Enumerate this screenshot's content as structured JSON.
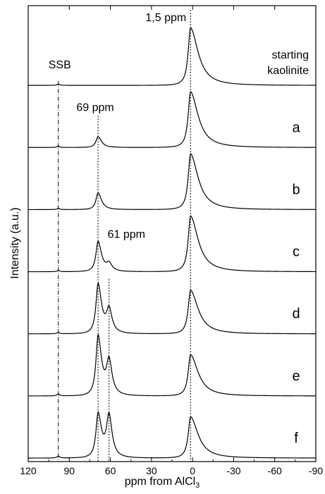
{
  "chart_data": {
    "type": "line",
    "xlabel": "ppm from  AlCl",
    "xlabel_subscript": "3",
    "ylabel": "Intensity (a.u.)",
    "xlim": [
      120,
      -90
    ],
    "x_reversed": true,
    "x_ticks": [
      120,
      90,
      60,
      30,
      0,
      -30,
      -60,
      -90
    ],
    "x_tick_labels": [
      "120",
      "90",
      "60",
      "30",
      "0",
      "-30",
      "-60",
      "-90"
    ],
    "grid": false,
    "reference_lines": [
      {
        "x": 98,
        "style": "dash-dot",
        "label": "SSB"
      },
      {
        "x": 69,
        "style": "dotted",
        "label": "69 ppm"
      },
      {
        "x": 61,
        "style": "dotted",
        "label": "61 ppm"
      },
      {
        "x": 1.5,
        "style": "dotted",
        "label": "1,5 ppm"
      }
    ],
    "series": [
      {
        "name": "starting kaolinite",
        "peaks": [
          {
            "ppm": 1.5,
            "height": 0.95
          }
        ],
        "ssb": 0.02
      },
      {
        "name": "a",
        "peaks": [
          {
            "ppm": 69,
            "height": 0.18
          },
          {
            "ppm": 1.5,
            "height": 0.92
          }
        ],
        "ssb": 0.02
      },
      {
        "name": "b",
        "peaks": [
          {
            "ppm": 69,
            "height": 0.28
          },
          {
            "ppm": 1.5,
            "height": 0.92
          }
        ],
        "ssb": 0.02
      },
      {
        "name": "c",
        "peaks": [
          {
            "ppm": 69,
            "height": 0.5
          },
          {
            "ppm": 61,
            "height": 0.12
          },
          {
            "ppm": 1.5,
            "height": 0.92
          }
        ],
        "ssb": 0.02
      },
      {
        "name": "d",
        "peaks": [
          {
            "ppm": 69,
            "height": 0.82
          },
          {
            "ppm": 61,
            "height": 0.38
          },
          {
            "ppm": 1.5,
            "height": 0.72
          }
        ],
        "ssb": 0.02
      },
      {
        "name": "e",
        "peaks": [
          {
            "ppm": 69,
            "height": 0.98
          },
          {
            "ppm": 61,
            "height": 0.55
          },
          {
            "ppm": 1.5,
            "height": 0.68
          }
        ],
        "ssb": 0.03
      },
      {
        "name": "f",
        "peaks": [
          {
            "ppm": 69,
            "height": 0.72
          },
          {
            "ppm": 61,
            "height": 0.68
          },
          {
            "ppm": 1.5,
            "height": 0.68
          }
        ],
        "ssb": 0.03
      }
    ]
  }
}
